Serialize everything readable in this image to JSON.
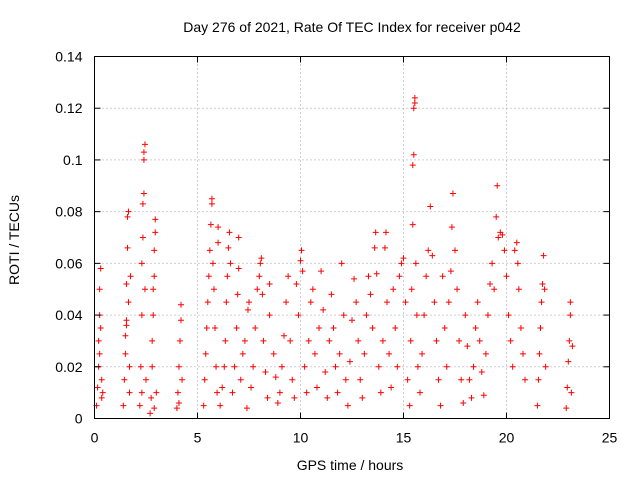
{
  "chart_data": {
    "type": "scatter",
    "title": "Day 276 of 2021, Rate Of TEC Index for receiver p042",
    "xlabel": "GPS time / hours",
    "ylabel": "ROTI / TECUs",
    "xlim": [
      0,
      25
    ],
    "ylim": [
      0,
      0.14
    ],
    "x_ticks": [
      0,
      5,
      10,
      15,
      20,
      25
    ],
    "x_tick_labels": [
      "0",
      "5",
      "10",
      "15",
      "20",
      "25"
    ],
    "y_ticks": [
      0,
      0.02,
      0.04,
      0.06,
      0.08,
      0.1,
      0.12,
      0.14
    ],
    "y_tick_labels": [
      "0",
      "0.02",
      "0.04",
      "0.06",
      "0.08",
      "0.1",
      "0.12",
      "0.14"
    ],
    "grid": true,
    "marker": "plus",
    "series": [
      {
        "name": "ROTI",
        "color": "#ff0000",
        "points": [
          [
            0.1,
            0.005
          ],
          [
            0.15,
            0.012
          ],
          [
            0.2,
            0.02
          ],
          [
            0.2,
            0.03
          ],
          [
            0.25,
            0.04
          ],
          [
            0.25,
            0.05
          ],
          [
            0.3,
            0.058
          ],
          [
            0.3,
            0.035
          ],
          [
            0.35,
            0.008
          ],
          [
            0.35,
            0.015
          ],
          [
            0.25,
            0.025
          ],
          [
            0.4,
            0.01
          ],
          [
            1.4,
            0.005
          ],
          [
            1.45,
            0.015
          ],
          [
            1.5,
            0.025
          ],
          [
            1.5,
            0.032
          ],
          [
            1.55,
            0.038
          ],
          [
            1.55,
            0.052
          ],
          [
            1.6,
            0.066
          ],
          [
            1.6,
            0.078
          ],
          [
            1.65,
            0.08
          ],
          [
            1.65,
            0.045
          ],
          [
            1.7,
            0.02
          ],
          [
            1.7,
            0.01
          ],
          [
            1.75,
            0.055
          ],
          [
            1.55,
            0.036
          ],
          [
            2.2,
            0.005
          ],
          [
            2.25,
            0.02
          ],
          [
            2.3,
            0.04
          ],
          [
            2.3,
            0.06
          ],
          [
            2.35,
            0.07
          ],
          [
            2.35,
            0.083
          ],
          [
            2.4,
            0.087
          ],
          [
            2.4,
            0.1
          ],
          [
            2.4,
            0.103
          ],
          [
            2.45,
            0.106
          ],
          [
            2.45,
            0.05
          ],
          [
            2.5,
            0.015
          ],
          [
            2.3,
            0.01
          ],
          [
            2.7,
            0.002
          ],
          [
            2.75,
            0.008
          ],
          [
            2.8,
            0.02
          ],
          [
            2.8,
            0.03
          ],
          [
            2.85,
            0.04
          ],
          [
            2.85,
            0.05
          ],
          [
            2.9,
            0.055
          ],
          [
            2.9,
            0.065
          ],
          [
            2.95,
            0.072
          ],
          [
            2.95,
            0.077
          ],
          [
            3.0,
            0.01
          ],
          [
            2.9,
            0.004
          ],
          [
            4.0,
            0.004
          ],
          [
            4.05,
            0.01
          ],
          [
            4.1,
            0.02
          ],
          [
            4.15,
            0.03
          ],
          [
            4.2,
            0.038
          ],
          [
            4.2,
            0.044
          ],
          [
            4.25,
            0.015
          ],
          [
            4.1,
            0.006
          ],
          [
            5.3,
            0.005
          ],
          [
            5.35,
            0.015
          ],
          [
            5.4,
            0.025
          ],
          [
            5.45,
            0.035
          ],
          [
            5.5,
            0.045
          ],
          [
            5.55,
            0.055
          ],
          [
            5.6,
            0.065
          ],
          [
            5.65,
            0.075
          ],
          [
            5.7,
            0.083
          ],
          [
            5.7,
            0.085
          ],
          [
            5.75,
            0.06
          ],
          [
            5.8,
            0.05
          ],
          [
            5.85,
            0.035
          ],
          [
            5.9,
            0.02
          ],
          [
            5.95,
            0.01
          ],
          [
            6.0,
            0.074
          ],
          [
            6.0,
            0.068
          ],
          [
            6.1,
            0.005
          ],
          [
            6.2,
            0.012
          ],
          [
            6.3,
            0.02
          ],
          [
            6.35,
            0.03
          ],
          [
            6.4,
            0.045
          ],
          [
            6.45,
            0.055
          ],
          [
            6.5,
            0.066
          ],
          [
            6.55,
            0.072
          ],
          [
            6.6,
            0.06
          ],
          [
            6.7,
            0.01
          ],
          [
            6.8,
            0.02
          ],
          [
            6.9,
            0.035
          ],
          [
            6.95,
            0.048
          ],
          [
            7.0,
            0.058
          ],
          [
            7.0,
            0.07
          ],
          [
            7.1,
            0.015
          ],
          [
            7.2,
            0.025
          ],
          [
            7.3,
            0.03
          ],
          [
            7.4,
            0.004
          ],
          [
            7.45,
            0.042
          ],
          [
            7.5,
            0.045
          ],
          [
            7.6,
            0.012
          ],
          [
            7.7,
            0.02
          ],
          [
            7.8,
            0.035
          ],
          [
            7.9,
            0.05
          ],
          [
            8.0,
            0.055
          ],
          [
            8.05,
            0.06
          ],
          [
            8.1,
            0.062
          ],
          [
            8.15,
            0.048
          ],
          [
            8.2,
            0.03
          ],
          [
            8.3,
            0.018
          ],
          [
            8.4,
            0.008
          ],
          [
            8.5,
            0.052
          ],
          [
            8.5,
            0.04
          ],
          [
            8.7,
            0.025
          ],
          [
            8.8,
            0.016
          ],
          [
            8.9,
            0.006
          ],
          [
            9.0,
            0.01
          ],
          [
            9.1,
            0.02
          ],
          [
            9.2,
            0.032
          ],
          [
            9.3,
            0.045
          ],
          [
            9.4,
            0.055
          ],
          [
            9.5,
            0.03
          ],
          [
            9.6,
            0.015
          ],
          [
            9.7,
            0.008
          ],
          [
            9.8,
            0.052
          ],
          [
            9.9,
            0.04
          ],
          [
            10.0,
            0.061
          ],
          [
            10.05,
            0.065
          ],
          [
            10.1,
            0.057
          ],
          [
            10.2,
            0.02
          ],
          [
            10.3,
            0.01
          ],
          [
            10.4,
            0.03
          ],
          [
            10.5,
            0.045
          ],
          [
            10.6,
            0.05
          ],
          [
            10.7,
            0.025
          ],
          [
            10.8,
            0.012
          ],
          [
            10.9,
            0.035
          ],
          [
            11.0,
            0.057
          ],
          [
            11.1,
            0.042
          ],
          [
            11.2,
            0.018
          ],
          [
            11.3,
            0.008
          ],
          [
            11.4,
            0.03
          ],
          [
            11.5,
            0.048
          ],
          [
            11.6,
            0.035
          ],
          [
            11.7,
            0.02
          ],
          [
            11.8,
            0.01
          ],
          [
            11.9,
            0.025
          ],
          [
            12.0,
            0.06
          ],
          [
            12.1,
            0.04
          ],
          [
            12.2,
            0.015
          ],
          [
            12.3,
            0.005
          ],
          [
            12.4,
            0.022
          ],
          [
            12.5,
            0.038
          ],
          [
            12.6,
            0.054
          ],
          [
            12.7,
            0.045
          ],
          [
            12.8,
            0.03
          ],
          [
            12.9,
            0.015
          ],
          [
            13.0,
            0.008
          ],
          [
            13.1,
            0.025
          ],
          [
            13.2,
            0.04
          ],
          [
            13.3,
            0.055
          ],
          [
            13.4,
            0.048
          ],
          [
            13.5,
            0.035
          ],
          [
            13.6,
            0.066
          ],
          [
            13.65,
            0.072
          ],
          [
            13.7,
            0.056
          ],
          [
            13.8,
            0.02
          ],
          [
            13.9,
            0.01
          ],
          [
            14.0,
            0.03
          ],
          [
            14.1,
            0.066
          ],
          [
            14.15,
            0.072
          ],
          [
            14.2,
            0.045
          ],
          [
            14.3,
            0.025
          ],
          [
            14.4,
            0.012
          ],
          [
            14.5,
            0.05
          ],
          [
            14.6,
            0.035
          ],
          [
            14.7,
            0.02
          ],
          [
            14.8,
            0.055
          ],
          [
            14.9,
            0.06
          ],
          [
            15.0,
            0.062
          ],
          [
            15.1,
            0.045
          ],
          [
            15.2,
            0.015
          ],
          [
            15.3,
            0.005
          ],
          [
            15.35,
            0.03
          ],
          [
            15.4,
            0.05
          ],
          [
            15.45,
            0.075
          ],
          [
            15.45,
            0.098
          ],
          [
            15.5,
            0.102
          ],
          [
            15.5,
            0.12
          ],
          [
            15.55,
            0.122
          ],
          [
            15.55,
            0.124
          ],
          [
            15.6,
            0.06
          ],
          [
            15.65,
            0.04
          ],
          [
            15.7,
            0.02
          ],
          [
            15.8,
            0.01
          ],
          [
            15.9,
            0.025
          ],
          [
            16.0,
            0.04
          ],
          [
            16.1,
            0.055
          ],
          [
            16.2,
            0.065
          ],
          [
            16.3,
            0.082
          ],
          [
            16.4,
            0.063
          ],
          [
            16.5,
            0.045
          ],
          [
            16.6,
            0.03
          ],
          [
            16.7,
            0.015
          ],
          [
            16.8,
            0.005
          ],
          [
            16.9,
            0.055
          ],
          [
            17.0,
            0.035
          ],
          [
            17.1,
            0.02
          ],
          [
            17.2,
            0.045
          ],
          [
            17.3,
            0.057
          ],
          [
            17.35,
            0.074
          ],
          [
            17.4,
            0.087
          ],
          [
            17.5,
            0.065
          ],
          [
            17.6,
            0.05
          ],
          [
            17.7,
            0.03
          ],
          [
            17.8,
            0.015
          ],
          [
            17.9,
            0.006
          ],
          [
            18.0,
            0.04
          ],
          [
            18.1,
            0.028
          ],
          [
            18.2,
            0.015
          ],
          [
            18.3,
            0.008
          ],
          [
            18.4,
            0.02
          ],
          [
            18.5,
            0.035
          ],
          [
            18.6,
            0.045
          ],
          [
            18.7,
            0.03
          ],
          [
            18.8,
            0.018
          ],
          [
            18.9,
            0.009
          ],
          [
            19.0,
            0.025
          ],
          [
            19.1,
            0.04
          ],
          [
            19.2,
            0.052
          ],
          [
            19.3,
            0.06
          ],
          [
            19.4,
            0.05
          ],
          [
            19.5,
            0.078
          ],
          [
            19.55,
            0.09
          ],
          [
            19.6,
            0.07
          ],
          [
            19.7,
            0.072
          ],
          [
            19.8,
            0.071
          ],
          [
            19.9,
            0.065
          ],
          [
            20.0,
            0.055
          ],
          [
            20.1,
            0.04
          ],
          [
            20.2,
            0.03
          ],
          [
            20.3,
            0.02
          ],
          [
            20.4,
            0.065
          ],
          [
            20.5,
            0.068
          ],
          [
            20.55,
            0.06
          ],
          [
            20.6,
            0.05
          ],
          [
            20.7,
            0.035
          ],
          [
            20.8,
            0.025
          ],
          [
            20.9,
            0.015
          ],
          [
            21.5,
            0.005
          ],
          [
            21.55,
            0.015
          ],
          [
            21.6,
            0.025
          ],
          [
            21.65,
            0.035
          ],
          [
            21.7,
            0.045
          ],
          [
            21.75,
            0.052
          ],
          [
            21.8,
            0.063
          ],
          [
            21.85,
            0.05
          ],
          [
            21.9,
            0.02
          ],
          [
            22.9,
            0.004
          ],
          [
            22.95,
            0.012
          ],
          [
            23.0,
            0.022
          ],
          [
            23.05,
            0.03
          ],
          [
            23.1,
            0.04
          ],
          [
            23.1,
            0.045
          ],
          [
            23.15,
            0.01
          ],
          [
            23.2,
            0.028
          ]
        ]
      }
    ]
  }
}
